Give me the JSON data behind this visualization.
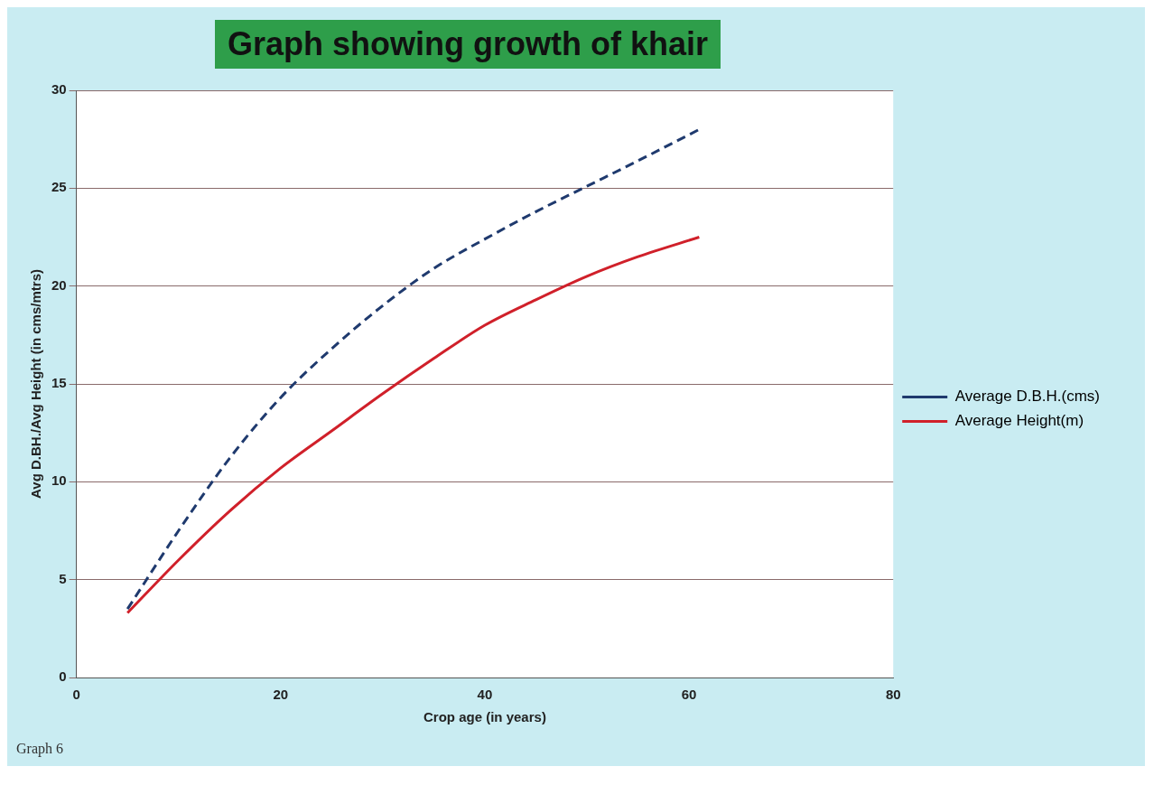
{
  "chart_data": {
    "type": "line",
    "title": "Graph showing growth of khair",
    "xlabel": "Crop age (in years)",
    "ylabel": "Avg D.BH./Avg Height (in cms/mtrs)",
    "x": [
      5,
      10,
      15,
      20,
      25,
      30,
      35,
      40,
      45,
      50,
      55,
      61
    ],
    "series": [
      {
        "name": "Average D.B.H.(cms)",
        "color": "#1f3a6e",
        "line_style": "dashed",
        "values": [
          3.5,
          7.5,
          11.2,
          14.3,
          16.8,
          19,
          20.9,
          22.4,
          23.8,
          25.1,
          26.4,
          28
        ]
      },
      {
        "name": "Average Height(m)",
        "color": "#d0202a",
        "line_style": "solid",
        "values": [
          3.3,
          6,
          8.5,
          10.7,
          12.6,
          14.5,
          16.3,
          18,
          19.3,
          20.5,
          21.5,
          22.5
        ]
      }
    ],
    "xlim": [
      0,
      80
    ],
    "xticks": [
      0,
      20,
      40,
      60,
      80
    ],
    "ylim": [
      0,
      30
    ],
    "yticks": [
      0,
      5,
      10,
      15,
      20,
      25,
      30
    ],
    "grid": "y",
    "legend": "right",
    "marker": "none",
    "annotations": [
      "Graph 6"
    ]
  }
}
